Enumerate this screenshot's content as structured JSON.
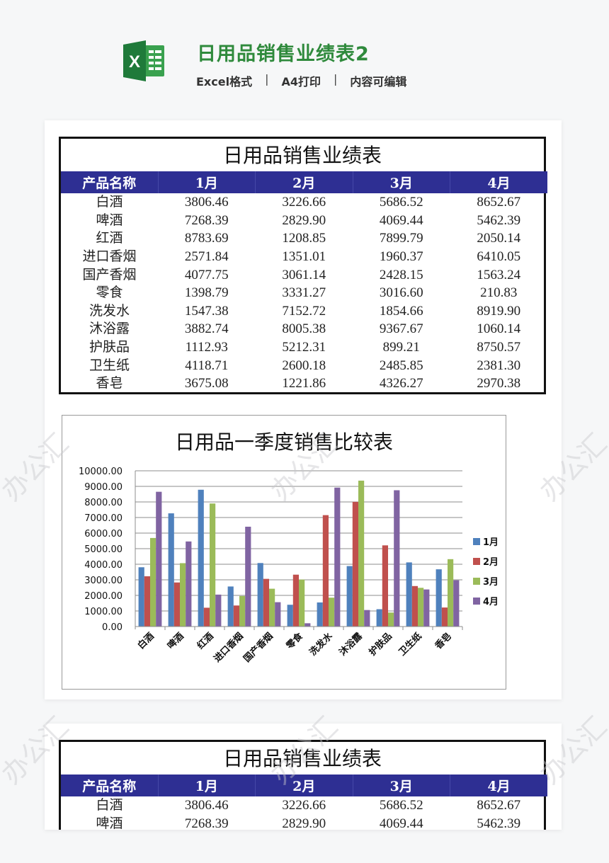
{
  "header": {
    "icon": "excel-icon",
    "icon_letter": "X",
    "title": "日用品销售业绩表2",
    "tags": [
      "Excel格式",
      "A4打印",
      "内容可编辑"
    ],
    "separator": "|",
    "accent_color": "#2f8a3c"
  },
  "sheet": {
    "title": "日用品销售业绩表",
    "header_color": "#2e2f93",
    "columns": [
      "产品名称",
      "1月",
      "2月",
      "3月",
      "4月"
    ],
    "rows": [
      [
        "白酒",
        "3806.46",
        "3226.66",
        "5686.52",
        "8652.67"
      ],
      [
        "啤酒",
        "7268.39",
        "2829.90",
        "4069.44",
        "5462.39"
      ],
      [
        "红酒",
        "8783.69",
        "1208.85",
        "7899.79",
        "2050.14"
      ],
      [
        "进口香烟",
        "2571.84",
        "1351.01",
        "1960.37",
        "6410.05"
      ],
      [
        "国产香烟",
        "4077.75",
        "3061.14",
        "2428.15",
        "1563.24"
      ],
      [
        "零食",
        "1398.79",
        "3331.27",
        "3016.60",
        "210.83"
      ],
      [
        "洗发水",
        "1547.38",
        "7152.72",
        "1854.66",
        "8919.90"
      ],
      [
        "沐浴露",
        "3882.74",
        "8005.38",
        "9367.67",
        "1060.14"
      ],
      [
        "护肤品",
        "1112.93",
        "5212.31",
        "899.21",
        "8750.57"
      ],
      [
        "卫生纸",
        "4118.71",
        "2600.18",
        "2485.85",
        "2381.30"
      ],
      [
        "香皂",
        "3675.08",
        "1221.86",
        "4326.27",
        "2970.38"
      ]
    ]
  },
  "chart_data": {
    "type": "bar",
    "title": "日用品一季度销售比较表",
    "categories": [
      "白酒",
      "啤酒",
      "红酒",
      "进口香烟",
      "国产香烟",
      "零食",
      "洗发水",
      "沐浴露",
      "护肤品",
      "卫生纸",
      "香皂"
    ],
    "series": [
      {
        "name": "1月",
        "color": "#4f81bd",
        "values": [
          3806.46,
          7268.39,
          8783.69,
          2571.84,
          4077.75,
          1398.79,
          1547.38,
          3882.74,
          1112.93,
          4118.71,
          3675.08
        ]
      },
      {
        "name": "2月",
        "color": "#c0504d",
        "values": [
          3226.66,
          2829.9,
          1208.85,
          1351.01,
          3061.14,
          3331.27,
          7152.72,
          8005.38,
          5212.31,
          2600.18,
          1221.86
        ]
      },
      {
        "name": "3月",
        "color": "#9bbb59",
        "values": [
          5686.52,
          4069.44,
          7899.79,
          1960.37,
          2428.15,
          3016.6,
          1854.66,
          9367.67,
          899.21,
          2485.85,
          4326.27
        ]
      },
      {
        "name": "4月",
        "color": "#8064a2",
        "values": [
          8652.67,
          5462.39,
          2050.14,
          6410.05,
          1563.24,
          210.83,
          8919.9,
          1060.14,
          8750.57,
          2381.3,
          2970.38
        ]
      }
    ],
    "yticks": [
      "0.00",
      "1000.00",
      "2000.00",
      "3000.00",
      "4000.00",
      "5000.00",
      "6000.00",
      "7000.00",
      "8000.00",
      "9000.00",
      "10000.00"
    ],
    "ylim": [
      0,
      10000
    ],
    "xlabel": "",
    "ylabel": "",
    "grid": true,
    "legend_position": "right"
  },
  "sheet_preview": {
    "title": "日用品销售业绩表",
    "columns": [
      "产品名称",
      "1月",
      "2月",
      "3月",
      "4月"
    ],
    "rows": [
      [
        "白酒",
        "3806.46",
        "3226.66",
        "5686.52",
        "8652.67"
      ],
      [
        "啤酒",
        "7268.39",
        "2829.90",
        "4069.44",
        "5462.39"
      ]
    ]
  },
  "watermark": "办公汇"
}
